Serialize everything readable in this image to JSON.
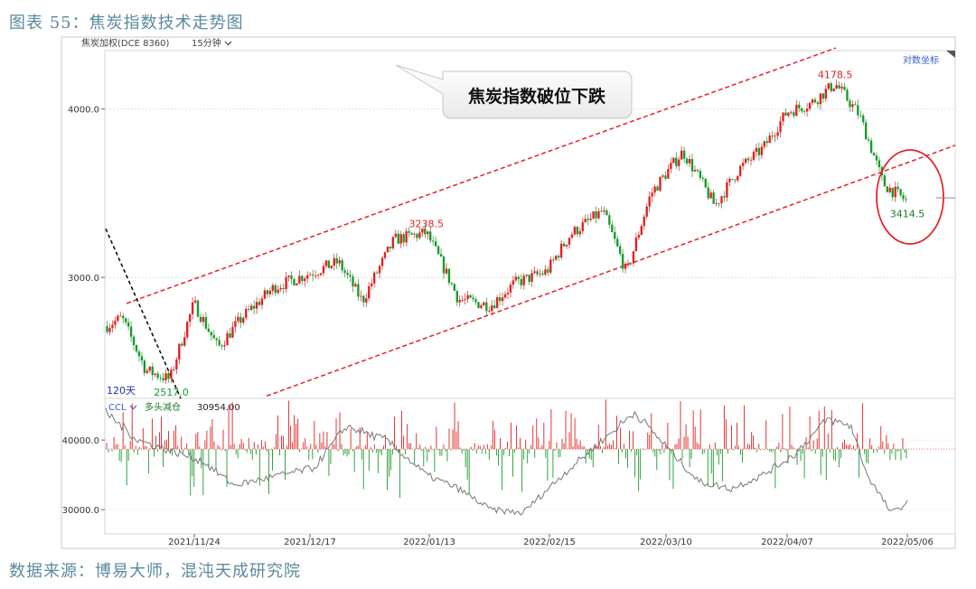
{
  "figure": {
    "title": "图表 55：焦炭指数技术走势图",
    "source": "数据来源：博易大师，混沌天成研究院"
  },
  "chart_header": {
    "symbol": "焦炭加权(DCE 8360)",
    "period": "15分钟",
    "dropdown_icon": "chevron-down-icon",
    "log_scale_label": "对数坐标"
  },
  "indicator_header": {
    "name": "CCL",
    "dropdown_icon": "chevron-down-icon",
    "label": "多头减仓",
    "value": "30954.00"
  },
  "annotations": {
    "callout": "焦炭指数破位下跌",
    "days_label": "120天",
    "low_label": "2517.0",
    "mid_high_label": "3238.5",
    "high_label": "4178.5",
    "last_label": "3414.5"
  },
  "colors": {
    "up": "#e02020",
    "down": "#1a9a2a",
    "channel": "#e8202a",
    "trend": "#111111",
    "circle": "#e8202a",
    "ccl_line": "#777777",
    "title": "#5a8a9c"
  },
  "chart_data": [
    {
      "type": "line",
      "subtype": "candlestick",
      "scale": "log",
      "ylim": [
        2440,
        4420
      ],
      "y_ticks": [
        3000.0,
        4000.0
      ],
      "y_tick_labels": [
        "3000.0",
        "4000.0"
      ],
      "x_tick_labels": [
        "2021/11/24",
        "2021/12/17",
        "2022/01/13",
        "2022/02/15",
        "2022/03/10",
        "2022/04/07",
        "2022/05/06"
      ],
      "waypoints": {
        "t": [
          0,
          2,
          5,
          8,
          11,
          14,
          17,
          21,
          26,
          29,
          32,
          36,
          40,
          44,
          48,
          51,
          55,
          58,
          62,
          65,
          68,
          72,
          76,
          79,
          82,
          85,
          88,
          91,
          94,
          97,
          100
        ],
        "price": [
          2760,
          2800,
          2560,
          2520,
          2870,
          2660,
          2800,
          2950,
          3030,
          3080,
          2880,
          3200,
          3238,
          2890,
          2860,
          2970,
          3030,
          3230,
          3360,
          3020,
          3460,
          3720,
          3390,
          3610,
          3740,
          3980,
          4040,
          4178,
          3960,
          3520,
          3414
        ]
      },
      "highlights": [
        {
          "label": "120天",
          "value": 2517.0
        },
        {
          "label": "3238.5",
          "value": 3238.5
        },
        {
          "label": "4178.5",
          "value": 4178.5
        },
        {
          "label": "3414.5",
          "value": 3414.5
        }
      ],
      "lines": [
        {
          "kind": "channel-upper",
          "style": "dashed"
        },
        {
          "kind": "channel-lower",
          "style": "dashed"
        },
        {
          "kind": "downtrend",
          "style": "dashed"
        }
      ]
    },
    {
      "type": "line",
      "name": "CCL",
      "ylim": [
        26500,
        46000
      ],
      "y_ticks": [
        30000.0,
        40000.0
      ],
      "y_tick_labels": [
        "30000.0",
        "40000.0"
      ],
      "baseline": 38700,
      "waypoints": {
        "t": [
          0,
          4,
          8,
          12,
          16,
          20,
          26,
          30,
          35,
          40,
          44,
          48,
          52,
          57,
          62,
          66,
          70,
          74,
          78,
          82,
          86,
          90,
          93,
          95,
          98,
          100
        ],
        "value": [
          44000,
          40000,
          38500,
          37000,
          33500,
          34500,
          36000,
          42000,
          40000,
          35000,
          33000,
          30000,
          29500,
          35000,
          40000,
          44000,
          39000,
          34000,
          33000,
          35000,
          38000,
          43000,
          42000,
          35000,
          29500,
          30954
        ]
      }
    }
  ]
}
